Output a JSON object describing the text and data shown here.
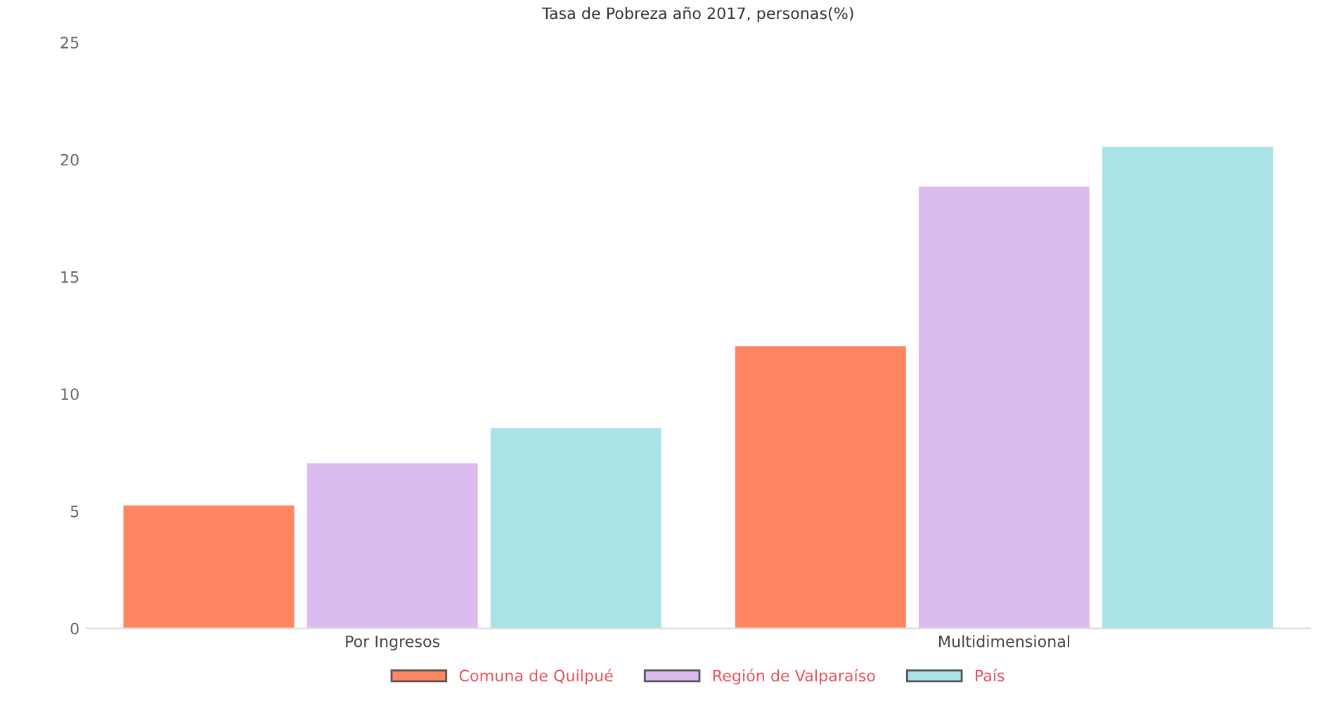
{
  "chart_data": {
    "type": "bar",
    "title": "Tasa de Pobreza año 2017, personas(%)",
    "categories": [
      "Por Ingresos",
      "Multidimensional"
    ],
    "series": [
      {
        "name": "Comuna de Quilpué",
        "color": "#ff8660",
        "values": [
          5.2,
          12.0
        ]
      },
      {
        "name": "Región de Valparaíso",
        "color": "#dcbcf0",
        "values": [
          7.0,
          18.8
        ]
      },
      {
        "name": "País",
        "color": "#a9e3e8",
        "values": [
          8.5,
          20.5
        ]
      }
    ],
    "ylim": [
      0,
      25
    ],
    "yticks": [
      0,
      5,
      10,
      15,
      20,
      25
    ],
    "grid": false,
    "legend": "bottom"
  }
}
